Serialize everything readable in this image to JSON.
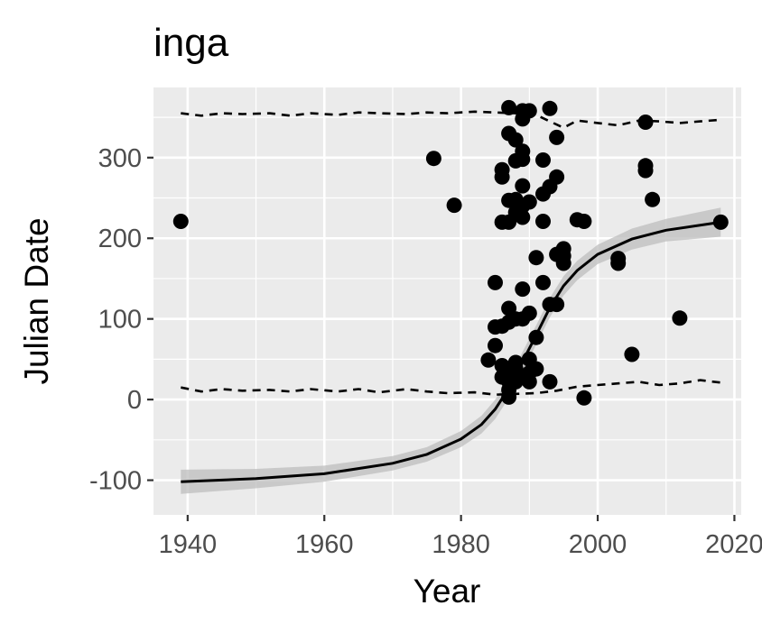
{
  "chart_data": {
    "type": "scatter",
    "title": "inga",
    "xlabel": "Year",
    "ylabel": "Julian Date",
    "xlim": [
      1935,
      2021
    ],
    "ylim": [
      -143,
      387
    ],
    "x_ticks": [
      1940,
      1960,
      1980,
      2000,
      2020
    ],
    "y_ticks": [
      -100,
      0,
      100,
      200,
      300
    ],
    "grid": true,
    "colors": {
      "panel": "#ebebeb",
      "grid": "#ffffff",
      "points": "#000000",
      "ribbon": "#bdbdbd",
      "line": "#000000"
    },
    "points": [
      [
        1939,
        221
      ],
      [
        1976,
        299
      ],
      [
        1979,
        241
      ],
      [
        1984,
        49
      ],
      [
        1985,
        145
      ],
      [
        1985,
        90
      ],
      [
        1985,
        67
      ],
      [
        1986,
        285
      ],
      [
        1986,
        276
      ],
      [
        1986,
        220
      ],
      [
        1986,
        91
      ],
      [
        1986,
        42
      ],
      [
        1986,
        28
      ],
      [
        1987,
        362
      ],
      [
        1987,
        330
      ],
      [
        1987,
        247
      ],
      [
        1987,
        220
      ],
      [
        1987,
        113
      ],
      [
        1987,
        96
      ],
      [
        1987,
        35
      ],
      [
        1987,
        22
      ],
      [
        1987,
        12
      ],
      [
        1987,
        3
      ],
      [
        1988,
        322
      ],
      [
        1988,
        296
      ],
      [
        1988,
        248
      ],
      [
        1988,
        232
      ],
      [
        1988,
        100
      ],
      [
        1988,
        46
      ],
      [
        1988,
        38
      ],
      [
        1988,
        28
      ],
      [
        1988,
        22
      ],
      [
        1989,
        358
      ],
      [
        1989,
        348
      ],
      [
        1989,
        308
      ],
      [
        1989,
        298
      ],
      [
        1989,
        265
      ],
      [
        1989,
        240
      ],
      [
        1989,
        226
      ],
      [
        1989,
        137
      ],
      [
        1989,
        100
      ],
      [
        1990,
        358
      ],
      [
        1990,
        245
      ],
      [
        1990,
        107
      ],
      [
        1990,
        50
      ],
      [
        1990,
        33
      ],
      [
        1990,
        22
      ],
      [
        1991,
        176
      ],
      [
        1991,
        77
      ],
      [
        1991,
        38
      ],
      [
        1992,
        297
      ],
      [
        1992,
        255
      ],
      [
        1992,
        221
      ],
      [
        1992,
        145
      ],
      [
        1993,
        361
      ],
      [
        1993,
        264
      ],
      [
        1993,
        118
      ],
      [
        1993,
        22
      ],
      [
        1994,
        325
      ],
      [
        1994,
        276
      ],
      [
        1994,
        180
      ],
      [
        1994,
        118
      ],
      [
        1995,
        187
      ],
      [
        1995,
        178
      ],
      [
        1995,
        169
      ],
      [
        1997,
        223
      ],
      [
        1998,
        221
      ],
      [
        1998,
        2
      ],
      [
        2003,
        175
      ],
      [
        2003,
        169
      ],
      [
        2005,
        56
      ],
      [
        2007,
        344
      ],
      [
        2007,
        290
      ],
      [
        2007,
        284
      ],
      [
        2008,
        248
      ],
      [
        2012,
        101
      ],
      [
        2018,
        220
      ]
    ],
    "fit": {
      "x": [
        1939,
        1950,
        1960,
        1970,
        1975,
        1980,
        1983,
        1985,
        1987,
        1989,
        1991,
        1993,
        1995,
        1997,
        2000,
        2005,
        2010,
        2018
      ],
      "y": [
        -102,
        -98,
        -92,
        -79,
        -68,
        -49,
        -31,
        -12,
        14,
        47,
        80,
        114,
        141,
        160,
        180,
        199,
        210,
        220
      ],
      "ci_half_width": [
        15,
        12,
        10,
        9,
        9,
        10,
        11,
        12,
        12,
        12,
        12,
        12,
        12,
        12,
        12,
        13,
        14,
        18
      ]
    },
    "upper_quantile": {
      "x": [
        1939,
        1942,
        1945,
        1948,
        1952,
        1955,
        1958,
        1962,
        1965,
        1968,
        1972,
        1975,
        1978,
        1982,
        1985,
        1988,
        1991,
        1993,
        1995,
        1997,
        2000,
        2003,
        2006,
        2009,
        2012,
        2015,
        2018
      ],
      "y": [
        355,
        352,
        355,
        354,
        355,
        352,
        355,
        353,
        356,
        355,
        354,
        356,
        355,
        357,
        356,
        355,
        353,
        345,
        337,
        346,
        343,
        340,
        346,
        345,
        343,
        345,
        347
      ]
    },
    "lower_quantile": {
      "x": [
        1939,
        1942,
        1945,
        1948,
        1952,
        1955,
        1958,
        1962,
        1965,
        1968,
        1972,
        1975,
        1978,
        1982,
        1985,
        1988,
        1991,
        1994,
        1997,
        2000,
        2003,
        2006,
        2009,
        2012,
        2015,
        2018
      ],
      "y": [
        15,
        10,
        13,
        11,
        12,
        10,
        13,
        10,
        13,
        9,
        13,
        10,
        8,
        9,
        6,
        7,
        8,
        11,
        16,
        18,
        20,
        22,
        18,
        20,
        24,
        21
      ]
    }
  }
}
